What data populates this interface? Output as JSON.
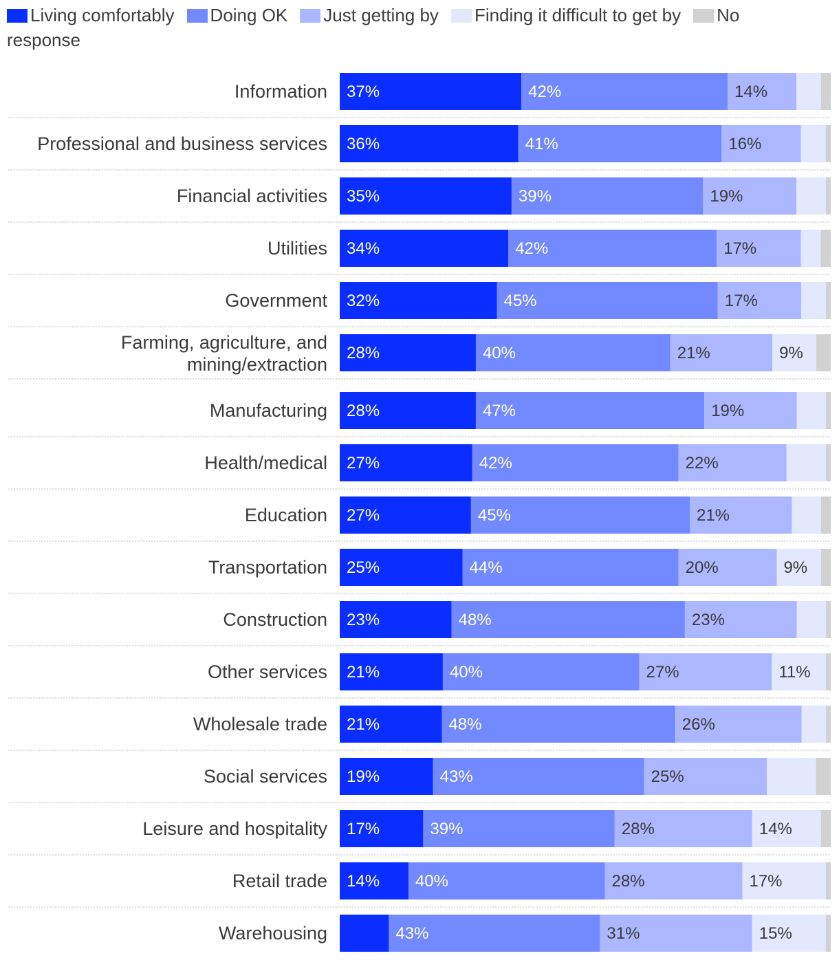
{
  "chart_data": {
    "type": "bar",
    "orientation": "horizontal",
    "stacked": true,
    "title": "",
    "xlabel": "",
    "ylabel": "",
    "xlim": [
      0,
      100
    ],
    "legend_position": "top-left",
    "categories": [
      "Information",
      "Professional and business services",
      "Financial activities",
      "Utilities",
      "Government",
      "Farming, agriculture, and mining/extraction",
      "Manufacturing",
      "Health/medical",
      "Education",
      "Transportation",
      "Construction",
      "Other services",
      "Wholesale trade",
      "Social services",
      "Leisure and hospitality",
      "Retail trade",
      "Warehousing"
    ],
    "series": [
      {
        "name": "Living comfortably",
        "color": "#0a2eff",
        "label_color": "#ffffff",
        "values": [
          37,
          36,
          35,
          34,
          32,
          28,
          28,
          27,
          27,
          25,
          23,
          21,
          21,
          19,
          17,
          14,
          10
        ],
        "labels": [
          "37%",
          "36%",
          "35%",
          "34%",
          "32%",
          "28%",
          "28%",
          "27%",
          "27%",
          "25%",
          "23%",
          "21%",
          "21%",
          "19%",
          "17%",
          "14%",
          ""
        ]
      },
      {
        "name": "Doing OK",
        "color": "#7389ff",
        "label_color": "#ffffff",
        "values": [
          42,
          41,
          39,
          42,
          45,
          40,
          47,
          42,
          45,
          44,
          48,
          40,
          48,
          43,
          39,
          40,
          43
        ],
        "labels": [
          "42%",
          "41%",
          "39%",
          "42%",
          "45%",
          "40%",
          "47%",
          "42%",
          "45%",
          "44%",
          "48%",
          "40%",
          "48%",
          "43%",
          "39%",
          "40%",
          "43%"
        ]
      },
      {
        "name": "Just getting by",
        "color": "#abb8ff",
        "label_color": "#3a3a3a",
        "values": [
          14,
          16,
          19,
          17,
          17,
          21,
          19,
          22,
          21,
          20,
          23,
          27,
          26,
          25,
          28,
          28,
          31
        ],
        "labels": [
          "14%",
          "16%",
          "19%",
          "17%",
          "17%",
          "21%",
          "19%",
          "22%",
          "21%",
          "20%",
          "23%",
          "27%",
          "26%",
          "25%",
          "28%",
          "28%",
          "31%"
        ]
      },
      {
        "name": "Finding it difficult to get by",
        "color": "#e3e8ff",
        "label_color": "#3a3a3a",
        "values": [
          5,
          5,
          6,
          4,
          5,
          9,
          6,
          8,
          6,
          9,
          6,
          11,
          5,
          10,
          14,
          17,
          15
        ],
        "labels": [
          "",
          "",
          "",
          "",
          "",
          "9%",
          "",
          "",
          "",
          "9%",
          "",
          "11%",
          "",
          "",
          "14%",
          "17%",
          "15%"
        ]
      },
      {
        "name": "No response",
        "color": "#d1d1d1",
        "label_color": "#3a3a3a",
        "values": [
          2,
          1,
          1,
          2,
          1,
          3,
          1,
          1,
          2,
          2,
          1,
          1,
          1,
          3,
          2,
          1,
          1
        ],
        "labels": [
          "",
          "",
          "",
          "",
          "",
          "",
          "",
          "",
          "",
          "",
          "",
          "",
          "",
          "",
          "",
          "",
          ""
        ]
      }
    ]
  }
}
